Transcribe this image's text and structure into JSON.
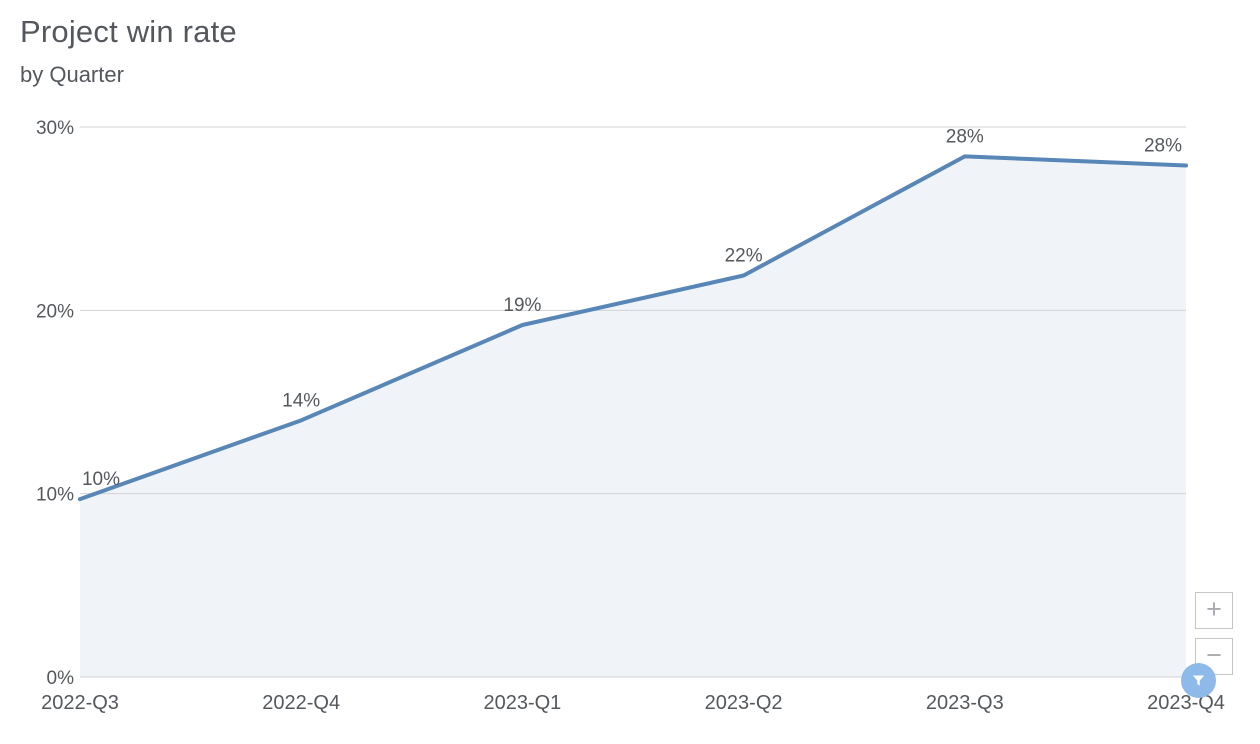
{
  "chart_data": {
    "type": "area",
    "title": "Project win rate",
    "subtitle": "by Quarter",
    "categories": [
      "2022-Q3",
      "2022-Q4",
      "2023-Q1",
      "2023-Q2",
      "2023-Q3",
      "2023-Q4"
    ],
    "values": [
      10,
      14,
      19,
      22,
      28,
      28
    ],
    "precise_values": [
      9.7,
      14.0,
      19.2,
      21.9,
      28.4,
      27.9
    ],
    "data_labels": [
      "10%",
      "14%",
      "19%",
      "22%",
      "28%",
      "28%"
    ],
    "xlabel": "",
    "ylabel": "",
    "ylim": [
      0,
      30
    ],
    "yticks": [
      0,
      10,
      20,
      30
    ],
    "ytick_labels": [
      "0%",
      "10%",
      "20%",
      "30%"
    ],
    "grid": true,
    "legend": false
  },
  "controls": {
    "zoom_in_label": "+",
    "zoom_out_label": "−",
    "filter_icon": "funnel"
  },
  "colors": {
    "line": "#5886b6",
    "area_fill": "#f0f4f8",
    "grid": "#d2d3d5",
    "text": "#54585d",
    "filter_button_bg": "#8dbae8",
    "filter_glyph": "#ffffff",
    "zoom_button_border": "#c6c6c6",
    "zoom_button_glyph": "#a9adb1"
  }
}
